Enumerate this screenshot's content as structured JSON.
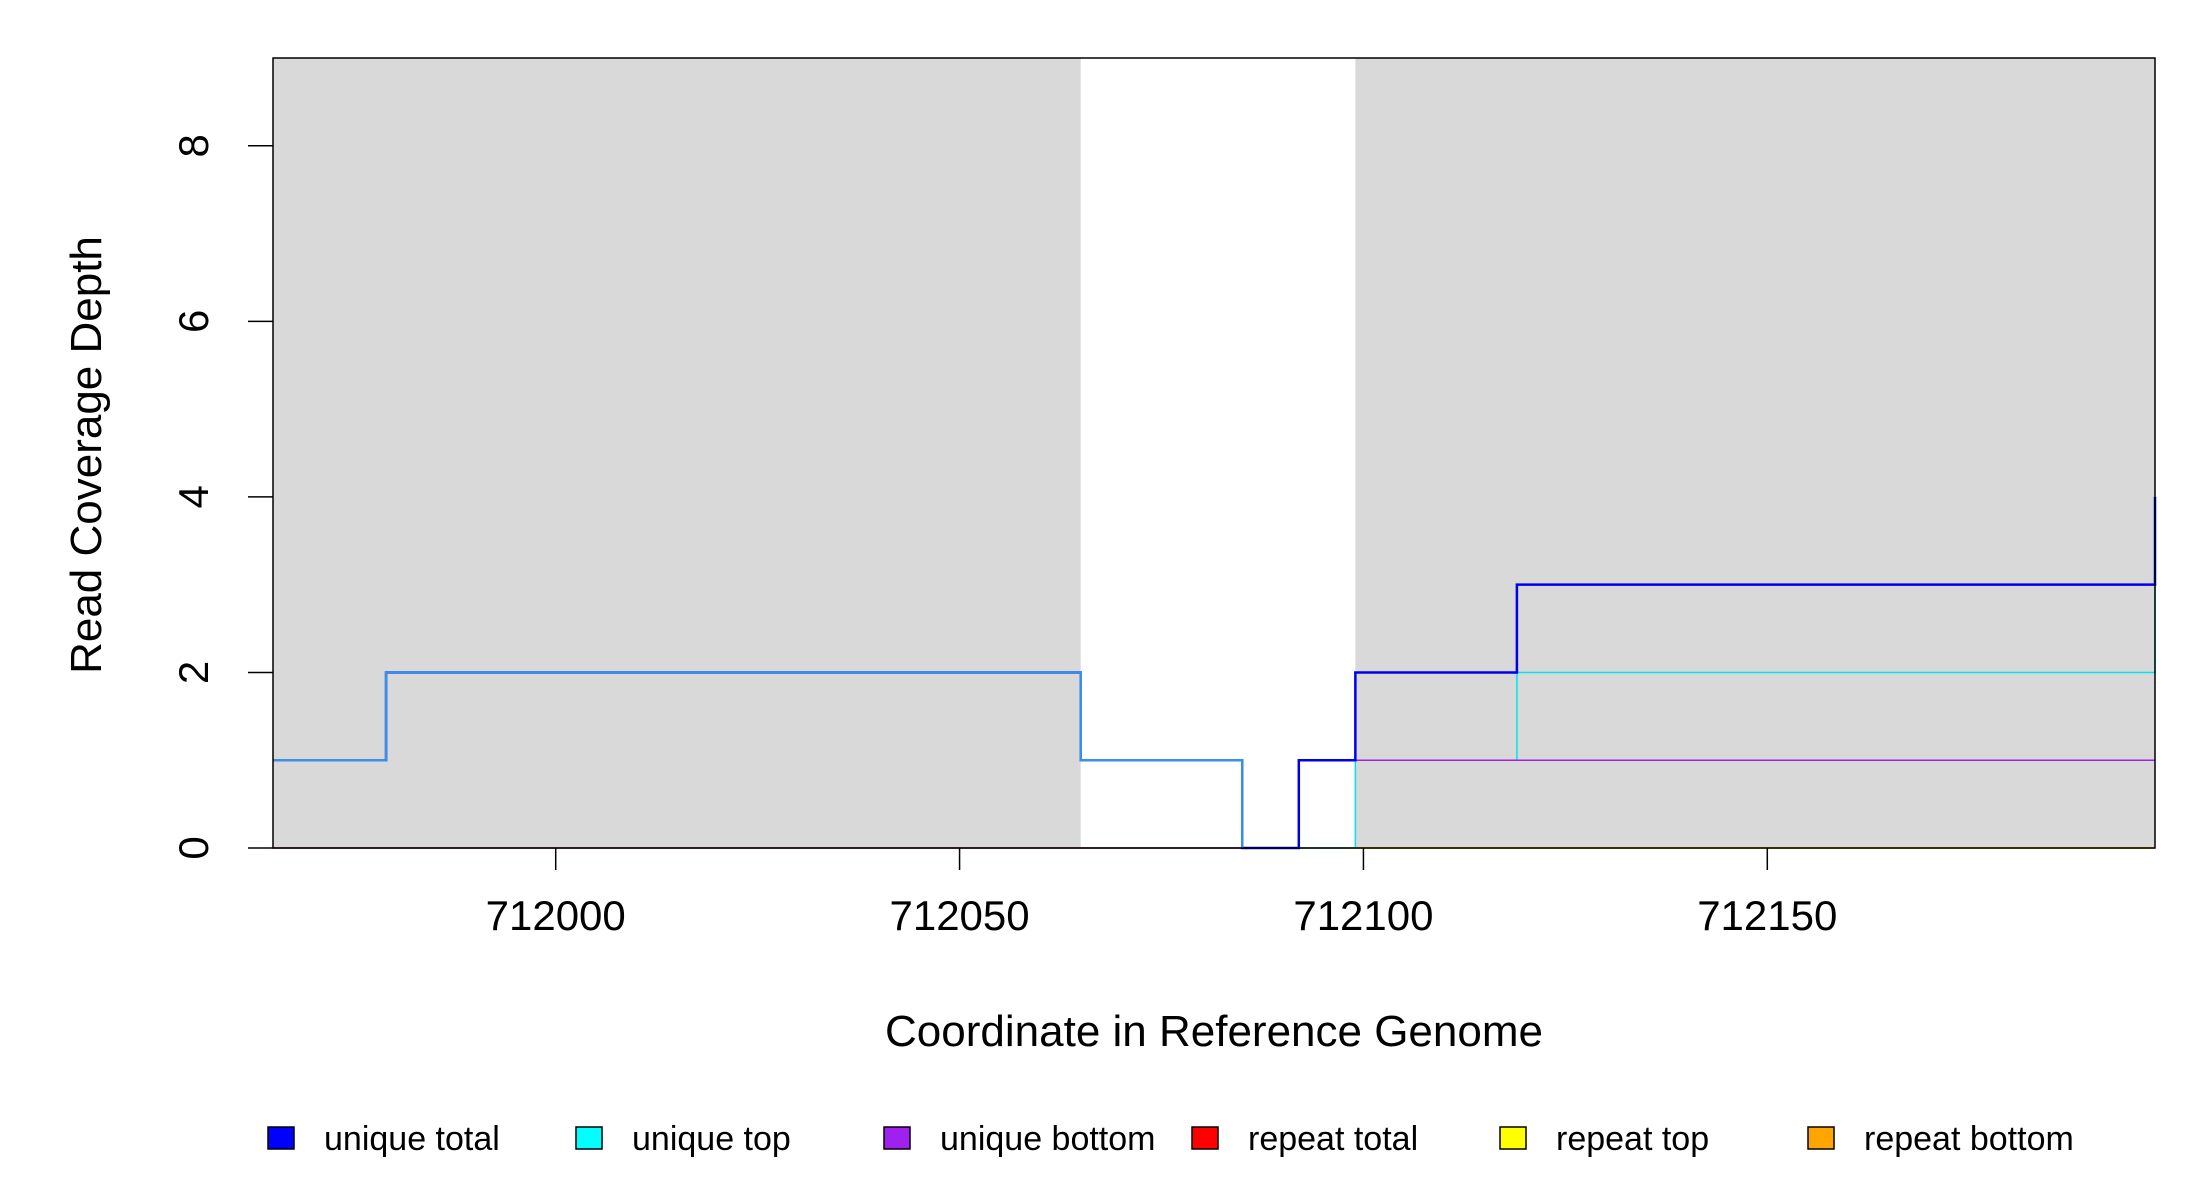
{
  "chart_data": {
    "type": "line",
    "xlabel": "Coordinate in Reference Genome",
    "ylabel": "Read Coverage Depth",
    "xlim": [
      711965,
      712198
    ],
    "ylim": [
      0,
      9
    ],
    "x_ticks": [
      712000,
      712050,
      712100,
      712150
    ],
    "x_tick_labels": [
      "712000",
      "712050",
      "712100",
      "712150"
    ],
    "y_ticks": [
      0,
      2,
      4,
      6,
      8
    ],
    "y_tick_labels": [
      "0",
      "2",
      "4",
      "6",
      "8"
    ],
    "grid": false,
    "legend_position": "bottom",
    "shaded_regions": [
      [
        711965,
        712065
      ],
      [
        712099,
        712198
      ]
    ],
    "shade_color": "#d9d9d9",
    "series": [
      {
        "name": "repeat total",
        "color": "#ff0000",
        "width": 1.5,
        "steps": [
          [
            711965,
            0
          ],
          [
            712198,
            0
          ]
        ]
      },
      {
        "name": "repeat top",
        "color": "#ffff00",
        "width": 1.5,
        "steps": [
          [
            711965,
            0
          ],
          [
            712198,
            0
          ]
        ]
      },
      {
        "name": "repeat bottom",
        "color": "#ffa500",
        "width": 1.5,
        "steps": [
          [
            711965,
            0
          ],
          [
            712198,
            0
          ]
        ]
      },
      {
        "name": "unique top",
        "color": "#00e5ee",
        "width": 1.5,
        "steps": [
          [
            711965,
            1
          ],
          [
            711979,
            2
          ],
          [
            712065,
            1
          ],
          [
            712085,
            0
          ],
          [
            712099,
            1
          ],
          [
            712119,
            2
          ],
          [
            712198,
            3
          ]
        ]
      },
      {
        "name": "unique bottom",
        "color": "#a020f0",
        "width": 1.5,
        "steps": [
          [
            711965,
            0
          ],
          [
            712092,
            1
          ],
          [
            712198,
            1
          ]
        ]
      },
      {
        "name": "unique total",
        "color": "#0000ee",
        "width": 2.5,
        "steps": [
          [
            711965,
            1
          ],
          [
            711979,
            2
          ],
          [
            712065,
            1
          ],
          [
            712085,
            0
          ],
          [
            712092,
            1
          ],
          [
            712099,
            2
          ],
          [
            712119,
            3
          ],
          [
            712198,
            4
          ]
        ]
      }
    ],
    "overlay_color": "#3a8fe6",
    "overlay_range": [
      711965,
      712085
    ],
    "legend": [
      {
        "label": "unique total",
        "color": "#0000ff"
      },
      {
        "label": "unique top",
        "color": "#00ffff"
      },
      {
        "label": "unique bottom",
        "color": "#a020f0"
      },
      {
        "label": "repeat total",
        "color": "#ff0000"
      },
      {
        "label": "repeat top",
        "color": "#ffff00"
      },
      {
        "label": "repeat bottom",
        "color": "#ffa500"
      }
    ]
  }
}
